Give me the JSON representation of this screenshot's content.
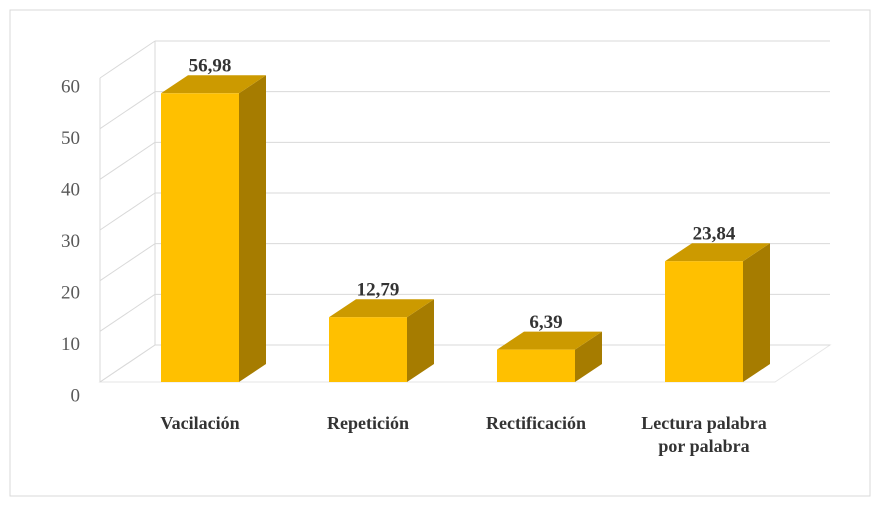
{
  "chart_data": {
    "type": "bar3d",
    "categories": [
      "Vacilación",
      "Repetición",
      "Rectificación",
      "Lectura palabra por palabra"
    ],
    "values": [
      56.98,
      12.79,
      6.39,
      23.84
    ],
    "value_labels": [
      "56,98",
      "12,79",
      "6,39",
      "23,84"
    ],
    "color": "#ffc000",
    "ylim": [
      0,
      60
    ],
    "yticks": [
      0,
      10,
      20,
      30,
      40,
      50,
      60
    ],
    "grid": true
  }
}
